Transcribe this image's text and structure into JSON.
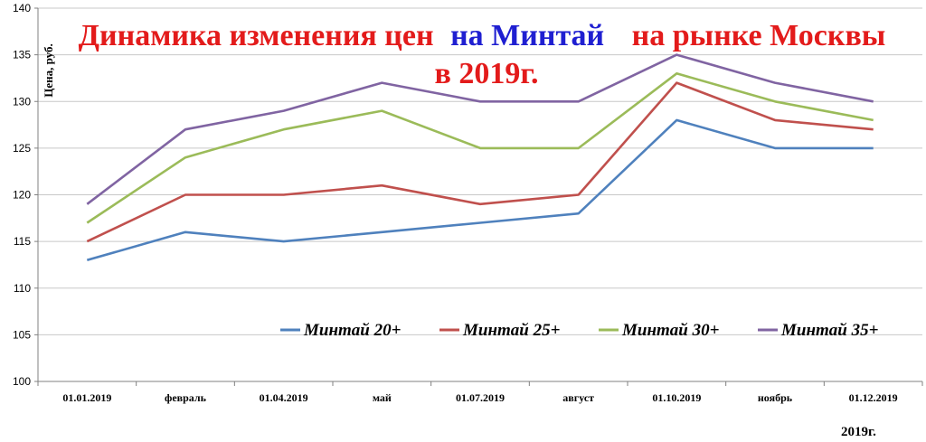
{
  "chart_data": {
    "type": "line",
    "title": {
      "part1": "Динамика изменения цен",
      "part2": "на Минтай",
      "part3": "на рынке Москвы",
      "line2": "в 2019г.",
      "color_red": "#e31b1b",
      "color_blue": "#1f1fd1"
    },
    "ylabel": "Цена, руб.",
    "xlabel": "2019г.",
    "ylim": [
      100,
      140
    ],
    "yticks": [
      100,
      105,
      110,
      115,
      120,
      125,
      130,
      135,
      140
    ],
    "categories": [
      "01.01.2019",
      "февраль",
      "01.04.2019",
      "май",
      "01.07.2019",
      "август",
      "01.10.2019",
      "ноябрь",
      "01.12.2019"
    ],
    "grid": "horizontal",
    "legend_position": "bottom-right",
    "series": [
      {
        "name": "Минтай 20+",
        "color": "#4f81bd",
        "values": [
          113,
          116,
          115,
          116,
          117,
          118,
          128,
          125,
          125
        ]
      },
      {
        "name": "Минтай 25+",
        "color": "#c0504d",
        "values": [
          115,
          120,
          120,
          121,
          119,
          120,
          132,
          128,
          127
        ]
      },
      {
        "name": "Минтай 30+",
        "color": "#9bbb59",
        "values": [
          117,
          124,
          127,
          129,
          125,
          125,
          133,
          130,
          128
        ]
      },
      {
        "name": "Минтай 35+",
        "color": "#8064a2",
        "values": [
          119,
          127,
          129,
          132,
          130,
          130,
          135,
          132,
          130
        ]
      }
    ]
  }
}
